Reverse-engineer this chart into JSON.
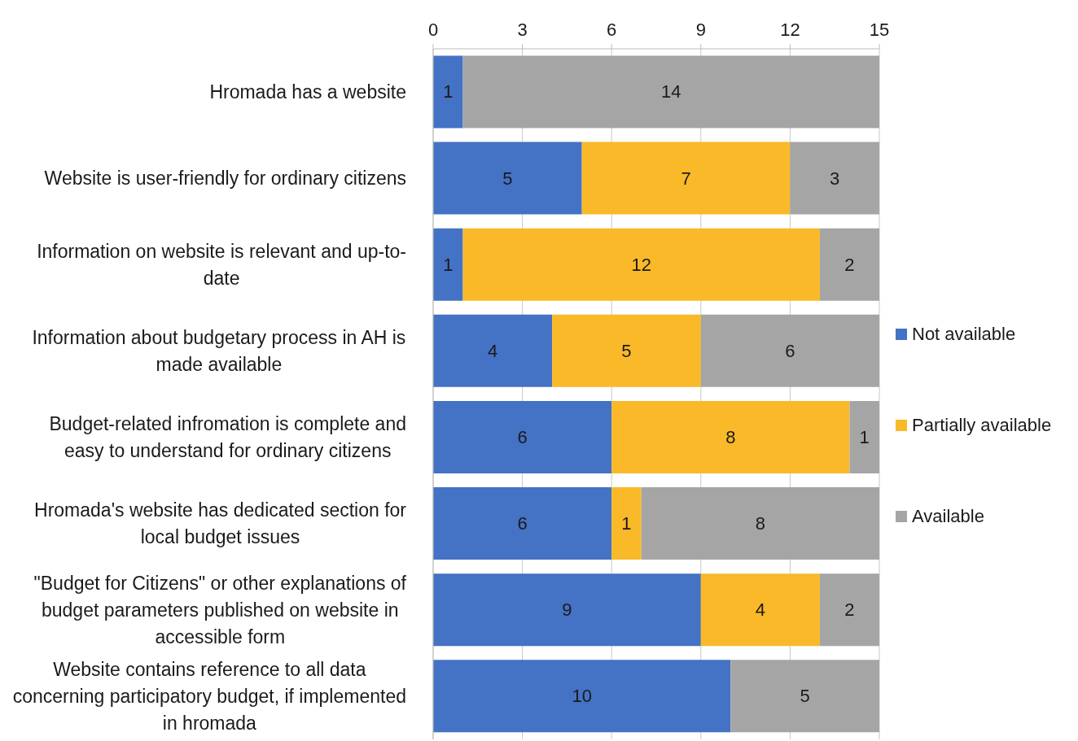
{
  "chart_data": {
    "type": "bar",
    "orientation": "horizontal",
    "stacked": true,
    "categories": [
      "Hromada has a website",
      "Website is user-friendly for ordinary citizens",
      "Information on website is relevant and up-to-date",
      "Information about budgetary process in AH is made available",
      "Budget-related infromation is complete and easy to understand for ordinary citizens",
      "Hromada's website has dedicated section for local budget issues",
      "\"Budget for Citizens\" or other explanations of budget parameters published on website in accessible form",
      "Website contains reference to all data concerning participatory budget, if implemented in hromada"
    ],
    "series": [
      {
        "name": "Not available",
        "color": "#4472c4",
        "values": [
          1,
          5,
          1,
          4,
          6,
          6,
          9,
          10
        ],
        "value_labels": [
          "1",
          "5",
          "1",
          "4",
          "6",
          "6",
          "9",
          "10"
        ]
      },
      {
        "name": "Partially available",
        "color": "#f9b928",
        "values": [
          0,
          7,
          12,
          5,
          8,
          1,
          4,
          0
        ],
        "value_labels": [
          null,
          "7",
          "12",
          "5",
          "8",
          "1",
          "4",
          null
        ]
      },
      {
        "name": "Available",
        "color": "#a5a5a5",
        "values": [
          14,
          3,
          2,
          6,
          1,
          8,
          2,
          5
        ],
        "value_labels": [
          "14",
          "3",
          "2",
          "6",
          "1",
          "8",
          "2",
          "5"
        ]
      }
    ],
    "xlim": [
      0,
      15
    ],
    "xticks": [
      0,
      3,
      6,
      9,
      12,
      15
    ],
    "grid": "x",
    "legend": "right"
  }
}
